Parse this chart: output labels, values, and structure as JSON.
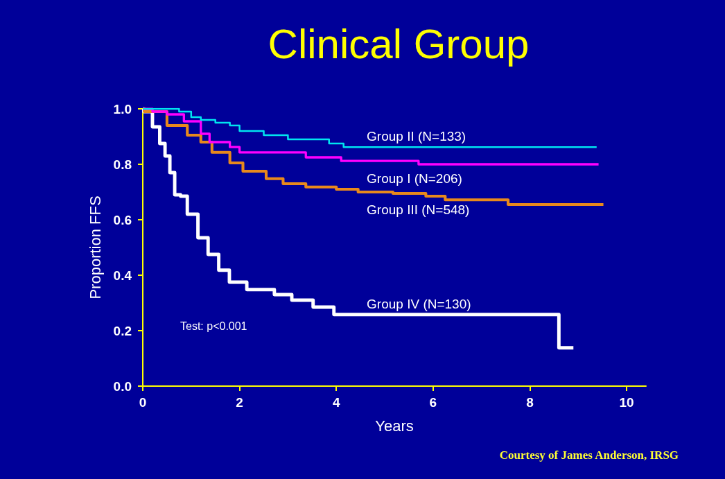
{
  "chart_data": {
    "type": "step",
    "title": "Clinical Group",
    "xlabel": "Years",
    "ylabel": "Proportion FFS",
    "xlim": [
      0,
      10.4
    ],
    "xticks": [
      0,
      2,
      4,
      6,
      8,
      10
    ],
    "ylim": [
      0,
      1.0
    ],
    "yticks": [
      {
        "value": 0,
        "label": "0.0"
      },
      {
        "value": 0.2,
        "label": "0.2"
      },
      {
        "value": 0.4,
        "label": "0.4"
      },
      {
        "value": 0.6,
        "label": "0.6"
      },
      {
        "value": 0.8,
        "label": "0.8"
      },
      {
        "value": 1,
        "label": "1.0"
      }
    ],
    "grid": false,
    "legend": false,
    "marker": "none",
    "annotations": [
      "Test: p<0.001",
      "Courtesy of James Anderson, IRSG"
    ],
    "series": [
      {
        "name": "Group II (N=133)",
        "color": "#00e5f0",
        "x": [
          0,
          0.75,
          1.0,
          1.2,
          1.5,
          1.8,
          2.0,
          2.5,
          3.0,
          3.85,
          4.15,
          9.38
        ],
        "values": [
          1.0,
          0.99,
          0.97,
          0.96,
          0.95,
          0.94,
          0.92,
          0.905,
          0.89,
          0.875,
          0.862,
          0.862
        ]
      },
      {
        "name": "Group I (N=206)",
        "color": "#ff00ff",
        "x": [
          0,
          0.2,
          0.5,
          0.85,
          1.2,
          1.38,
          1.8,
          2.0,
          3.37,
          4.1,
          5.7,
          9.42
        ],
        "values": [
          1.0,
          0.99,
          0.98,
          0.955,
          0.91,
          0.88,
          0.862,
          0.843,
          0.825,
          0.812,
          0.8,
          0.8
        ]
      },
      {
        "name": "Group III (N=548)",
        "color": "#e8891c",
        "x": [
          0,
          0.03,
          0.5,
          0.92,
          1.2,
          1.43,
          1.8,
          2.07,
          2.55,
          2.9,
          3.37,
          4.0,
          4.45,
          5.17,
          5.85,
          6.25,
          7.55,
          9.52
        ],
        "values": [
          1.0,
          0.99,
          0.94,
          0.905,
          0.88,
          0.843,
          0.805,
          0.775,
          0.748,
          0.73,
          0.718,
          0.71,
          0.7,
          0.695,
          0.685,
          0.672,
          0.655,
          0.655
        ]
      },
      {
        "name": "Group IV (N=130)",
        "color": "#ffffff",
        "x": [
          0,
          0.02,
          0.2,
          0.35,
          0.46,
          0.56,
          0.66,
          0.78,
          0.92,
          1.14,
          1.35,
          1.57,
          1.79,
          2.15,
          2.72,
          3.08,
          3.52,
          3.95,
          8.6,
          8.9
        ],
        "values": [
          1.0,
          0.99,
          0.935,
          0.875,
          0.83,
          0.77,
          0.69,
          0.685,
          0.62,
          0.535,
          0.475,
          0.418,
          0.375,
          0.348,
          0.33,
          0.31,
          0.285,
          0.258,
          0.138,
          0.138
        ]
      }
    ]
  }
}
